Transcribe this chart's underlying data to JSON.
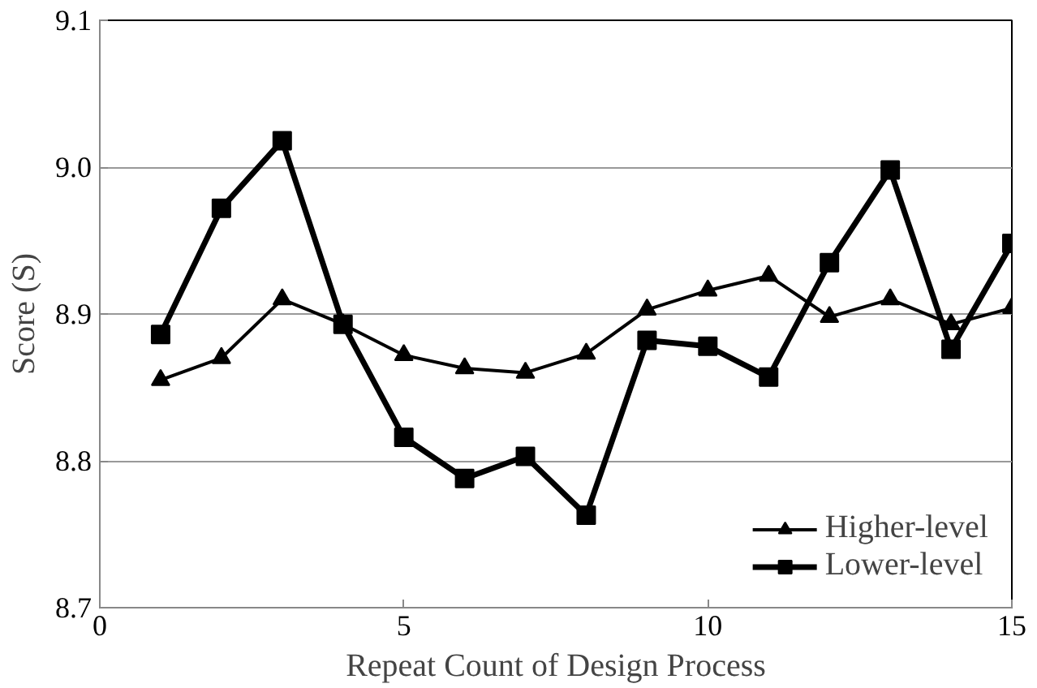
{
  "chart_data": {
    "type": "line",
    "xlabel": "Repeat Count of Design Process",
    "ylabel": "Score (S)",
    "x": [
      1,
      2,
      3,
      4,
      5,
      6,
      7,
      8,
      9,
      10,
      11,
      12,
      13,
      14,
      15
    ],
    "series": [
      {
        "name": "Higher-level",
        "color": "#000000",
        "marker": "triangle",
        "values": [
          8.855,
          8.87,
          8.91,
          8.893,
          8.872,
          8.863,
          8.86,
          8.873,
          8.903,
          8.916,
          8.926,
          8.898,
          8.91,
          8.893,
          8.904
        ]
      },
      {
        "name": "Lower-level",
        "color": "#000000",
        "marker": "square",
        "values": [
          8.886,
          8.972,
          9.018,
          8.893,
          8.816,
          8.788,
          8.803,
          8.763,
          8.882,
          8.878,
          8.857,
          8.935,
          8.998,
          8.876,
          8.948
        ]
      }
    ],
    "xlim": [
      0,
      15
    ],
    "ylim": [
      8.7,
      9.1
    ],
    "xticks": [
      0,
      5,
      10,
      15
    ],
    "yticks": [
      8.7,
      8.8,
      8.9,
      {
        "value": 9.0,
        "label": "9.0"
      },
      9.1
    ],
    "grid": "y",
    "legend": "bottom right",
    "line_style": "solid"
  }
}
